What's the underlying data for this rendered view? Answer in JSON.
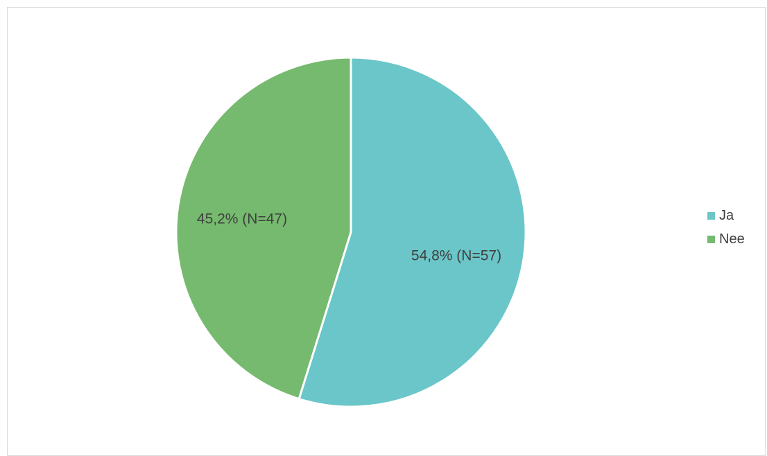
{
  "chart_data": {
    "type": "pie",
    "categories": [
      "Ja",
      "Nee"
    ],
    "values": [
      54.8,
      45.2
    ],
    "counts": [
      57,
      47
    ],
    "data_labels": [
      "54,8% (N=57)",
      "45,2% (N=47)"
    ],
    "colors": [
      "#6AC6C8",
      "#75BA6E"
    ],
    "legend": {
      "position": "right",
      "entries": [
        "Ja",
        "Nee"
      ]
    },
    "title": ""
  }
}
